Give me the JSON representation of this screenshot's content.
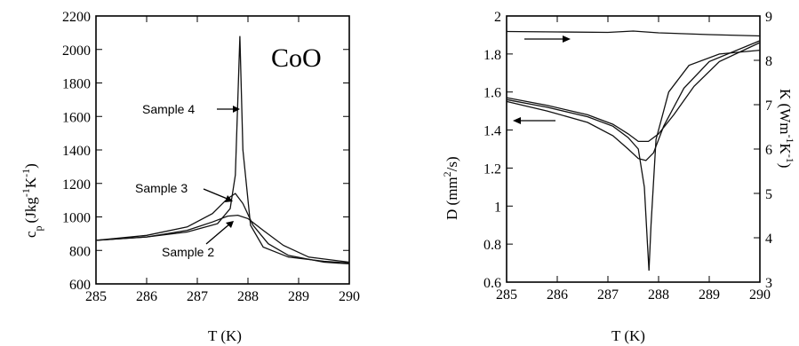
{
  "chart_data": [
    {
      "type": "line",
      "xlabel": "T (K)",
      "ylabel_main": "c",
      "ylabel_sub": "p",
      "ylabel_unit": "(Jkg",
      "ylabel_exp1": "-1",
      "ylabel_mid": "K",
      "ylabel_exp2": "-1",
      "ylabel_end": ")",
      "xlim": [
        285,
        290
      ],
      "ylim": [
        600,
        2200
      ],
      "xticks": [
        285,
        286,
        287,
        288,
        289,
        290
      ],
      "yticks": [
        600,
        800,
        1000,
        1200,
        1400,
        1600,
        1800,
        2000,
        2200
      ],
      "annotation": "CoO",
      "series": [
        {
          "name": "Sample 4",
          "x": [
            285,
            286,
            286.8,
            287.4,
            287.65,
            287.75,
            287.8,
            287.84,
            287.9,
            288.05,
            288.3,
            288.8,
            289.5,
            290
          ],
          "y": [
            860,
            880,
            910,
            960,
            1050,
            1250,
            1700,
            2080,
            1400,
            950,
            820,
            760,
            735,
            725
          ]
        },
        {
          "name": "Sample 3",
          "x": [
            285,
            286,
            286.8,
            287.3,
            287.6,
            287.75,
            287.9,
            288.1,
            288.4,
            288.8,
            289.5,
            290
          ],
          "y": [
            860,
            890,
            940,
            1020,
            1110,
            1140,
            1080,
            950,
            840,
            770,
            730,
            720
          ]
        },
        {
          "name": "Sample 2",
          "x": [
            285,
            286,
            286.8,
            287.3,
            287.6,
            287.8,
            288.0,
            288.3,
            288.7,
            289.2,
            290
          ],
          "y": [
            860,
            880,
            920,
            970,
            1005,
            1010,
            990,
            920,
            830,
            760,
            730
          ]
        }
      ],
      "labels": [
        "Sample 4",
        "Sample 3",
        "Sample 2"
      ]
    },
    {
      "type": "line",
      "xlabel": "T (K)",
      "ylabel_left_main": "D (mm",
      "ylabel_left_exp": "2",
      "ylabel_left_end": "/s)",
      "ylabel_right_main": "K (Wm",
      "ylabel_right_exp1": "-1",
      "ylabel_right_mid": "K",
      "ylabel_right_exp2": "-1",
      "ylabel_right_end": ")",
      "xlim": [
        285,
        290
      ],
      "ylim_left": [
        0.6,
        2
      ],
      "ylim_right": [
        3,
        9
      ],
      "xticks": [
        285,
        286,
        287,
        288,
        289,
        290
      ],
      "yticks_left": [
        "0.6",
        "0.8",
        "1",
        "1.2",
        "1.4",
        "1.6",
        "1.8",
        "2"
      ],
      "yticks_right": [
        "3",
        "4",
        "5",
        "6",
        "7",
        "8",
        "9"
      ],
      "series": [
        {
          "axis": "right",
          "x": [
            285,
            286,
            287,
            287.5,
            288,
            288.5,
            289,
            290
          ],
          "y": [
            8.65,
            8.64,
            8.63,
            8.66,
            8.62,
            8.6,
            8.58,
            8.55
          ]
        },
        {
          "axis": "left",
          "x": [
            285,
            285.8,
            286.6,
            287.1,
            287.4,
            287.6,
            287.72,
            287.78,
            287.81,
            287.85,
            287.95,
            288.2,
            288.6,
            289.2,
            290
          ],
          "y": [
            1.56,
            1.52,
            1.47,
            1.42,
            1.36,
            1.3,
            1.1,
            0.8,
            0.66,
            0.9,
            1.35,
            1.6,
            1.74,
            1.8,
            1.82
          ]
        },
        {
          "axis": "left",
          "x": [
            285,
            285.8,
            286.6,
            287.1,
            287.4,
            287.6,
            287.75,
            287.9,
            288.1,
            288.5,
            289.0,
            290
          ],
          "y": [
            1.55,
            1.5,
            1.44,
            1.37,
            1.3,
            1.25,
            1.24,
            1.28,
            1.42,
            1.62,
            1.76,
            1.87
          ]
        },
        {
          "axis": "left",
          "x": [
            285,
            285.8,
            286.6,
            287.1,
            287.4,
            287.6,
            287.8,
            288.0,
            288.3,
            288.7,
            289.2,
            290
          ],
          "y": [
            1.57,
            1.53,
            1.48,
            1.43,
            1.38,
            1.34,
            1.34,
            1.38,
            1.48,
            1.63,
            1.76,
            1.86
          ]
        }
      ]
    }
  ]
}
